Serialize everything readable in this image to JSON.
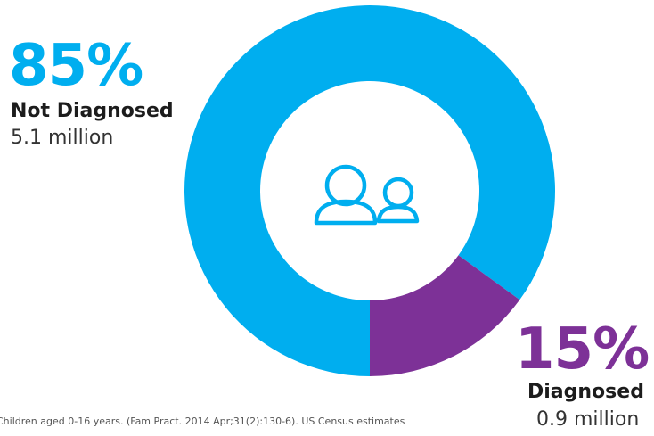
{
  "colors": {
    "not_diagnosed": "#00aeef",
    "diagnosed": "#7d3197",
    "center_icon": "#00aeef"
  },
  "center_icon": "people-icon",
  "chart_data": {
    "type": "pie",
    "style": "donut",
    "title": "",
    "categories": [
      "Not Diagnosed",
      "Diagnosed"
    ],
    "values": [
      85,
      15
    ],
    "unit": "%",
    "counts": [
      "5.1 million",
      "0.9 million"
    ]
  },
  "labels": {
    "not_diagnosed": {
      "percent": "85%",
      "category": "Not Diagnosed",
      "amount": "5.1 million"
    },
    "diagnosed": {
      "percent": "15%",
      "category": "Diagnosed",
      "amount": "0.9 million"
    }
  },
  "footnote": "Children aged 0-16 years. (Fam Pract. 2014 Apr;31(2):130-6). US Census estimates"
}
